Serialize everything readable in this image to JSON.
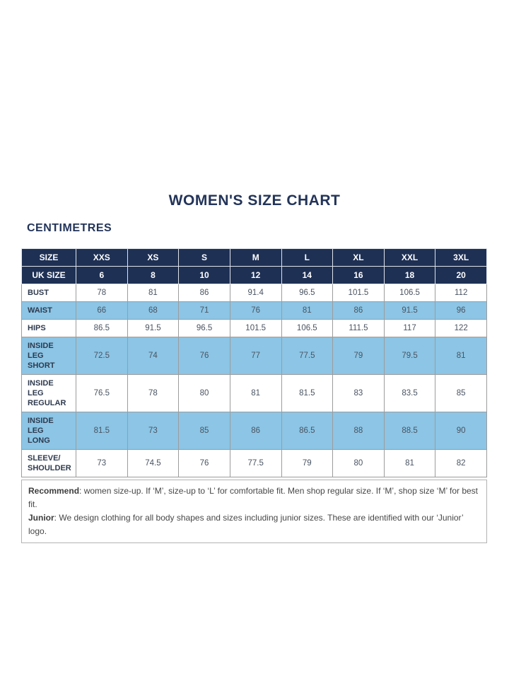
{
  "title": "WOMEN'S SIZE CHART",
  "unit_label": "CENTIMETRES",
  "table": {
    "size_row": {
      "label": "SIZE",
      "values": [
        "XXS",
        "XS",
        "S",
        "M",
        "L",
        "XL",
        "XXL",
        "3XL"
      ]
    },
    "uk_row": {
      "label": "UK SIZE",
      "values": [
        "6",
        "8",
        "10",
        "12",
        "14",
        "16",
        "18",
        "20"
      ]
    },
    "rows": [
      {
        "label": "BUST",
        "shaded": false,
        "values": [
          "78",
          "81",
          "86",
          "91.4",
          "96.5",
          "101.5",
          "106.5",
          "112"
        ]
      },
      {
        "label": "WAIST",
        "shaded": true,
        "values": [
          "66",
          "68",
          "71",
          "76",
          "81",
          "86",
          "91.5",
          "96"
        ]
      },
      {
        "label": "HIPS",
        "shaded": false,
        "values": [
          "86.5",
          "91.5",
          "96.5",
          "101.5",
          "106.5",
          "111.5",
          "117",
          "122"
        ]
      },
      {
        "label": "INSIDE LEG\nSHORT",
        "shaded": true,
        "values": [
          "72.5",
          "74",
          "76",
          "77",
          "77.5",
          "79",
          "79.5",
          "81"
        ]
      },
      {
        "label": "INSIDE LEG\nREGULAR",
        "shaded": false,
        "values": [
          "76.5",
          "78",
          "80",
          "81",
          "81.5",
          "83",
          "83.5",
          "85"
        ]
      },
      {
        "label": "INSIDE LEG\nLONG",
        "shaded": true,
        "values": [
          "81.5",
          "73",
          "85",
          "86",
          "86.5",
          "88",
          "88.5",
          "90"
        ]
      },
      {
        "label": "SLEEVE/\nSHOULDER",
        "shaded": false,
        "values": [
          "73",
          "74.5",
          "76",
          "77.5",
          "79",
          "80",
          "81",
          "82"
        ]
      }
    ]
  },
  "footnote": {
    "line1_lead": "Recommend",
    "line1_rest": ": women size-up. If ‘M’, size-up to ‘L’ for comfortable fit. Men shop regular size. If ‘M’, shop size ‘M’ for best fit.",
    "line2_lead": "Junior",
    "line2_rest": ": We design clothing for all body shapes and sizes including junior sizes. These are identified with our ‘Junior’ logo."
  },
  "colors": {
    "navy": "#1e3054",
    "lightblue": "#8cc5e5",
    "border": "#9c9c9c",
    "titlecolor": "#233459",
    "labeltext": "#2e3a4e",
    "valuetext": "#4a5462",
    "footnotetext": "#474747"
  }
}
